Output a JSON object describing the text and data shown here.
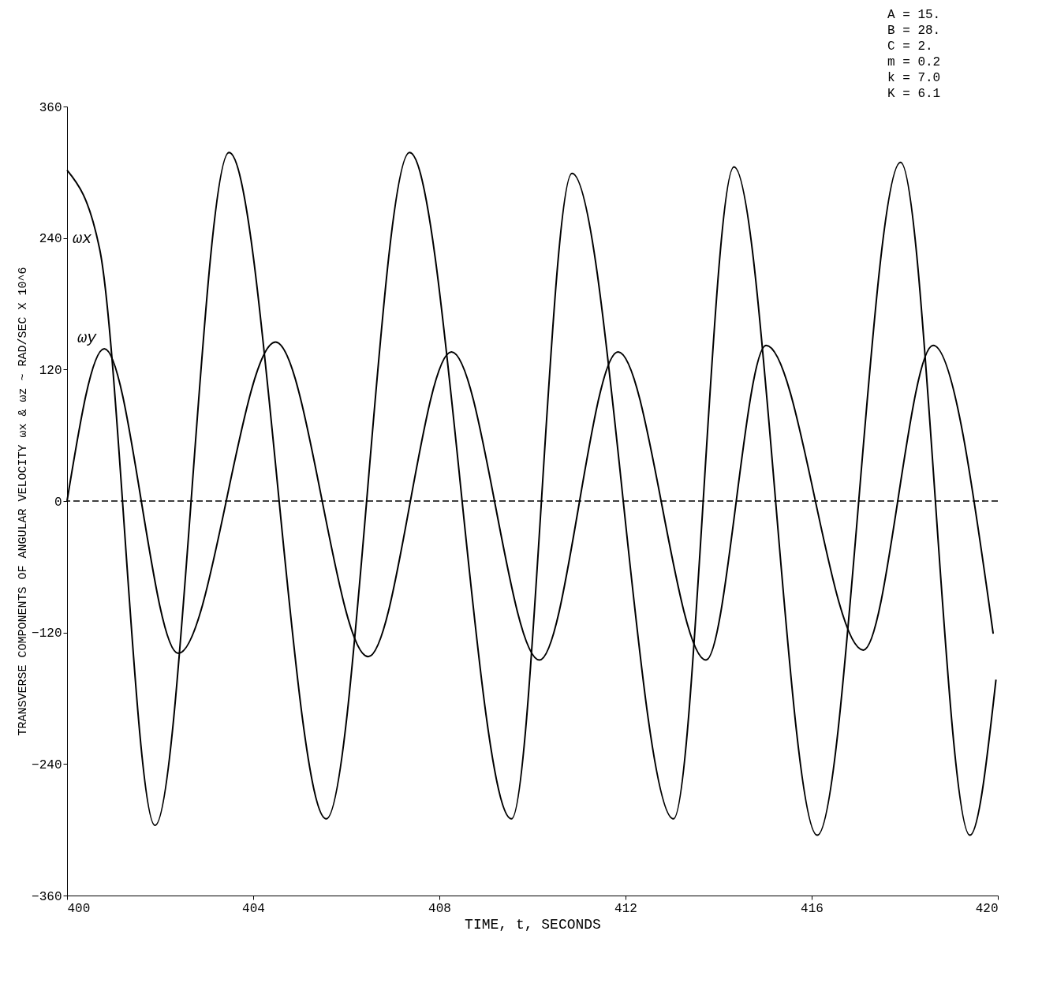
{
  "chart_data": {
    "type": "line",
    "xlabel": "TIME, t, SECONDS",
    "ylabel": "TRANSVERSE COMPONENTS OF ANGULAR VELOCITY ωx & ωz ~ RAD/SEC X 10^6",
    "series": [
      {
        "name": "ωx",
        "color": "#000000",
        "x": [
          400,
          400.7,
          401.89,
          403.48,
          405.57,
          407.36,
          409.55,
          410.85,
          413.03,
          414.33,
          416.12,
          417.91,
          419.4,
          419.96
        ],
        "values": [
          302,
          230,
          -296,
          318,
          -290,
          318,
          -290,
          299,
          -290,
          305,
          -305,
          309,
          -305,
          -163
        ]
      },
      {
        "name": "ωy",
        "color": "#000000",
        "x": [
          400,
          400.8,
          402.39,
          404.48,
          406.47,
          408.26,
          410.15,
          411.84,
          413.73,
          415.02,
          417.11,
          418.61,
          419.9
        ],
        "values": [
          0,
          139,
          -139,
          145,
          -142,
          136,
          -145,
          136,
          -145,
          142,
          -136,
          142,
          -121
        ]
      }
    ],
    "xlim": [
      400,
      420
    ],
    "xticks": [
      400,
      404,
      408,
      412,
      416,
      420
    ],
    "ylim": [
      -360,
      360
    ],
    "yticks": [
      -360,
      -240,
      -120,
      0,
      120,
      240,
      360
    ],
    "ref_lines": [
      {
        "axis": "y",
        "value": 0,
        "line_style": "dashed"
      }
    ],
    "annotations": [
      "A = 15.",
      "B = 28.",
      "C = 2.",
      "m = 0.2",
      "k = 7.0",
      "K = 6.1"
    ],
    "grid": false,
    "legend": false,
    "marker": "none",
    "line_style": "solid"
  }
}
